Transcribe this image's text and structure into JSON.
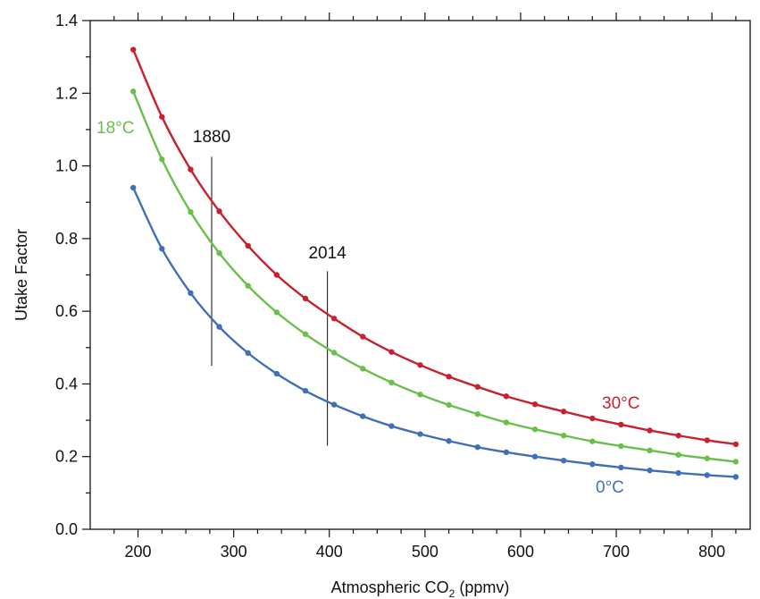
{
  "chart_data": {
    "type": "line",
    "xlabel": {
      "main": "Atmospheric CO",
      "sub": "2",
      "tail": " (ppmv)"
    },
    "ylabel": "Utake Factor",
    "xlim": [
      150,
      840
    ],
    "ylim": [
      0.0,
      1.4
    ],
    "x_ticks": [
      200,
      300,
      400,
      500,
      600,
      700,
      800
    ],
    "x_tick_labels": [
      "200",
      "300",
      "400",
      "500",
      "600",
      "700",
      "800"
    ],
    "y_ticks": [
      0.0,
      0.2,
      0.4,
      0.6,
      0.8,
      1.0,
      1.2,
      1.4
    ],
    "y_tick_labels": [
      "0.0",
      "0.2",
      "0.4",
      "0.6",
      "0.8",
      "1.0",
      "1.2",
      "1.4"
    ],
    "grid": false,
    "x": [
      195,
      225,
      255,
      285,
      315,
      345,
      375,
      405,
      435,
      465,
      495,
      525,
      555,
      585,
      615,
      645,
      675,
      705,
      735,
      765,
      795,
      825
    ],
    "series": [
      {
        "name": "30°C",
        "color": "#c8202f",
        "values": [
          1.32,
          1.135,
          0.99,
          0.875,
          0.78,
          0.7,
          0.635,
          0.58,
          0.53,
          0.488,
          0.452,
          0.42,
          0.392,
          0.366,
          0.344,
          0.324,
          0.305,
          0.288,
          0.272,
          0.258,
          0.245,
          0.234
        ]
      },
      {
        "name": "18°C",
        "color": "#6abf4b",
        "values": [
          1.205,
          1.018,
          0.873,
          0.76,
          0.67,
          0.597,
          0.537,
          0.486,
          0.442,
          0.404,
          0.371,
          0.342,
          0.317,
          0.294,
          0.275,
          0.258,
          0.242,
          0.229,
          0.217,
          0.205,
          0.195,
          0.186
        ]
      },
      {
        "name": "0°C",
        "color": "#3f6fb6",
        "values": [
          0.94,
          0.772,
          0.65,
          0.557,
          0.485,
          0.428,
          0.381,
          0.343,
          0.311,
          0.284,
          0.262,
          0.243,
          0.226,
          0.212,
          0.2,
          0.189,
          0.179,
          0.17,
          0.162,
          0.155,
          0.149,
          0.144
        ]
      }
    ],
    "annotations": {
      "year_lines": [
        {
          "label": "1880",
          "x": 277,
          "y_from": 0.45,
          "y_to": 1.025
        },
        {
          "label": "2014",
          "x": 398,
          "y_from": 0.23,
          "y_to": 0.71
        }
      ]
    }
  }
}
